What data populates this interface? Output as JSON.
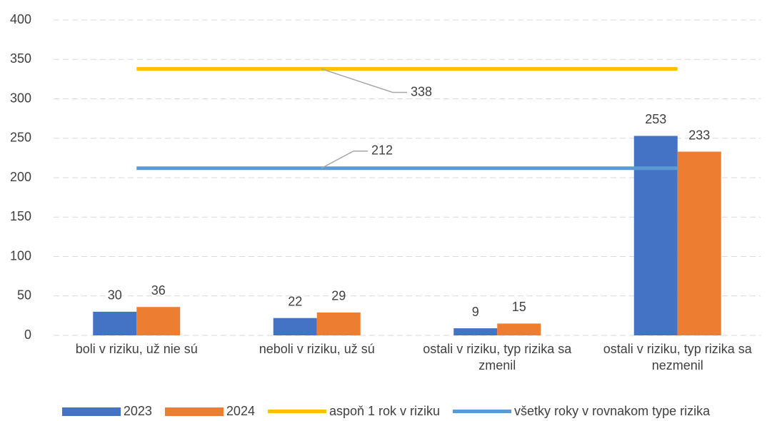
{
  "chart_data": {
    "type": "bar",
    "categories": [
      "boli v riziku, už nie sú",
      "neboli v riziku, už sú",
      "ostali v riziku, typ rizika sa zmenil",
      "ostali v riziku, typ rizika sa nezmenil"
    ],
    "series": [
      {
        "name": "2023",
        "color": "#4472c4",
        "values": [
          30,
          22,
          9,
          253
        ]
      },
      {
        "name": "2024",
        "color": "#ed7d31",
        "values": [
          36,
          29,
          15,
          233
        ]
      }
    ],
    "reference_lines": [
      {
        "name": "aspoň 1 rok v riziku",
        "color": "#ffc000",
        "value": 338
      },
      {
        "name": "všetky roky v rovnakom type rizika",
        "color": "#5b9bd5",
        "value": 212
      }
    ],
    "ylim": [
      0,
      400
    ],
    "yticks": [
      0,
      50,
      100,
      150,
      200,
      250,
      300,
      350,
      400
    ],
    "grid": true
  }
}
